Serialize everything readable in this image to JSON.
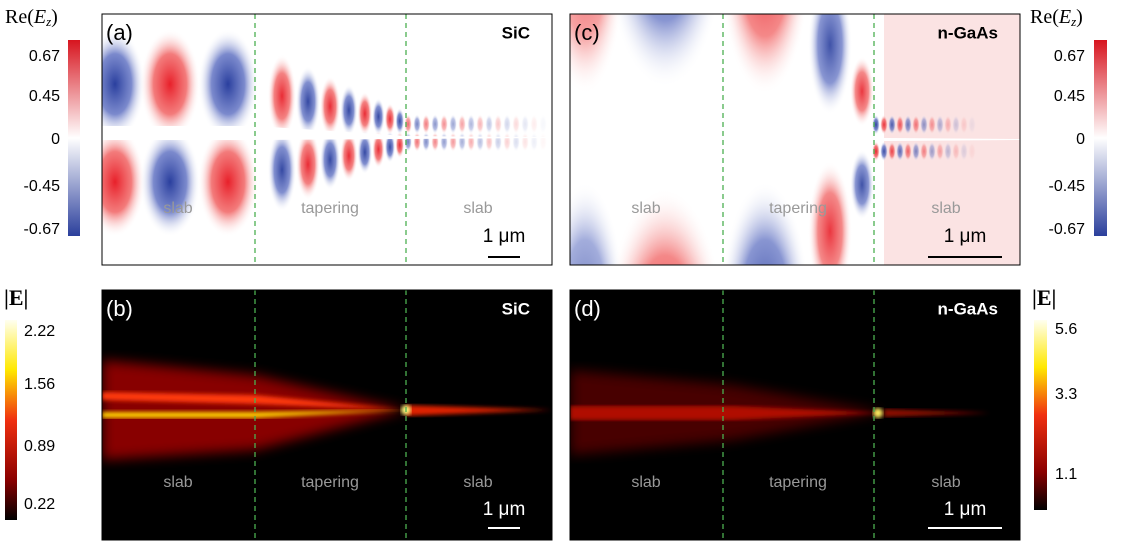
{
  "panels": [
    {
      "label": "(a)",
      "material": "SiC",
      "regions": [
        "slab",
        "tapering",
        "slab"
      ],
      "scale": "1 μm"
    },
    {
      "label": "(b)",
      "material": "SiC",
      "regions": [
        "slab",
        "tapering",
        "slab"
      ],
      "scale": "1 μm"
    },
    {
      "label": "(c)",
      "material": "n-GaAs",
      "regions": [
        "slab",
        "tapering",
        "slab"
      ],
      "scale": "1 μm"
    },
    {
      "label": "(d)",
      "material": "n-GaAs",
      "regions": [
        "slab",
        "tapering",
        "slab"
      ],
      "scale": "1 μm"
    }
  ],
  "colorbars": [
    {
      "func": "Re",
      "symbol": "E",
      "sub": "z",
      "ticks": [
        "0.67",
        "0.45",
        "0",
        "-0.45",
        "-0.67"
      ]
    },
    {
      "func": "Re",
      "symbol": "E",
      "sub": "z",
      "ticks": [
        "0.67",
        "0.45",
        "0",
        "-0.45",
        "-0.67"
      ]
    },
    {
      "label": "|E|",
      "ticks": [
        "2.22",
        "1.56",
        "0.89",
        "0.22"
      ]
    },
    {
      "label": "|E|",
      "ticks": [
        "5.6",
        "3.3",
        "1.1"
      ]
    }
  ]
}
